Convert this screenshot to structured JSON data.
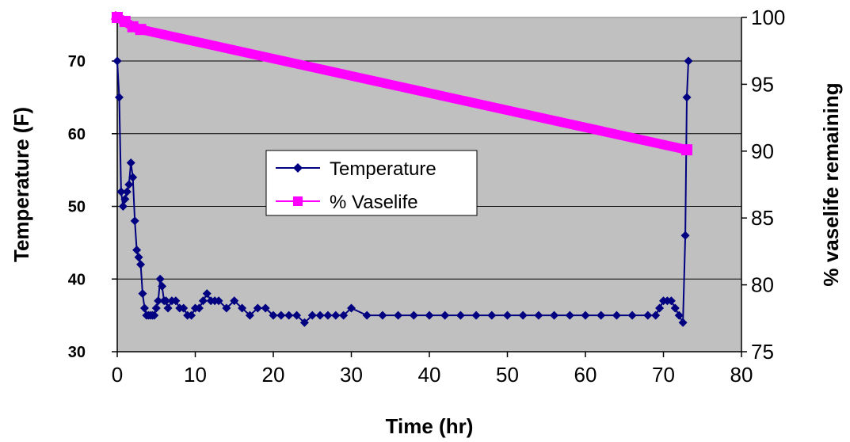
{
  "chart_data": {
    "type": "line",
    "title": "",
    "xlabel": "Time (hr)",
    "ylabel_left": "Temperature (F)",
    "ylabel_right": "% vaselife remaining",
    "xlim": [
      0,
      80
    ],
    "ylim_left": [
      30,
      76
    ],
    "ylim_right": [
      75,
      100
    ],
    "x_ticks": [
      "0",
      "10",
      "20",
      "30",
      "40",
      "50",
      "60",
      "70",
      "80"
    ],
    "y_left_ticks": [
      "30",
      "40",
      "50",
      "60",
      "70"
    ],
    "y_right_ticks": [
      "75",
      "80",
      "85",
      "90",
      "95",
      "100"
    ],
    "grid": true,
    "legend_position": "center",
    "colors": {
      "plot_bg": "#c0c0c0",
      "temperature": "#000080",
      "vaselife": "#ff00ff"
    },
    "series": [
      {
        "name": "Temperature",
        "axis": "left",
        "marker": "diamond",
        "x": [
          0,
          0.25,
          0.5,
          0.75,
          1,
          1.25,
          1.5,
          1.75,
          2,
          2.25,
          2.5,
          2.75,
          3,
          3.25,
          3.5,
          3.75,
          4,
          4.25,
          4.5,
          4.75,
          5,
          5.25,
          5.5,
          5.75,
          6,
          6.25,
          6.5,
          7,
          7.5,
          8,
          8.5,
          9,
          9.5,
          10,
          10.5,
          11,
          11.5,
          12,
          12.5,
          13,
          14,
          15,
          16,
          17,
          18,
          19,
          20,
          21,
          22,
          23,
          24,
          25,
          26,
          27,
          28,
          29,
          30,
          32,
          34,
          36,
          38,
          40,
          42,
          44,
          46,
          48,
          50,
          52,
          54,
          56,
          58,
          60,
          62,
          64,
          66,
          68,
          69,
          69.5,
          70,
          70.5,
          71,
          71.5,
          72,
          72.5,
          72.8,
          73,
          73.2
        ],
        "y": [
          70,
          65,
          52,
          50,
          51,
          52,
          53,
          56,
          54,
          48,
          44,
          43,
          42,
          38,
          36,
          35,
          35,
          35,
          35,
          35,
          36,
          37,
          40,
          39,
          37,
          37,
          36,
          37,
          37,
          36,
          36,
          35,
          35,
          36,
          36,
          37,
          38,
          37,
          37,
          37,
          36,
          37,
          36,
          35,
          36,
          36,
          35,
          35,
          35,
          35,
          34,
          35,
          35,
          35,
          35,
          35,
          36,
          35,
          35,
          35,
          35,
          35,
          35,
          35,
          35,
          35,
          35,
          35,
          35,
          35,
          35,
          35,
          35,
          35,
          35,
          35,
          35,
          36,
          37,
          37,
          37,
          36,
          35,
          34,
          46,
          65,
          70
        ]
      },
      {
        "name": "% Vaselife",
        "axis": "right",
        "marker": "square",
        "x": [
          0,
          1,
          2,
          3,
          73
        ],
        "y": [
          100,
          99.7,
          99.3,
          99.1,
          90.1
        ]
      }
    ]
  }
}
